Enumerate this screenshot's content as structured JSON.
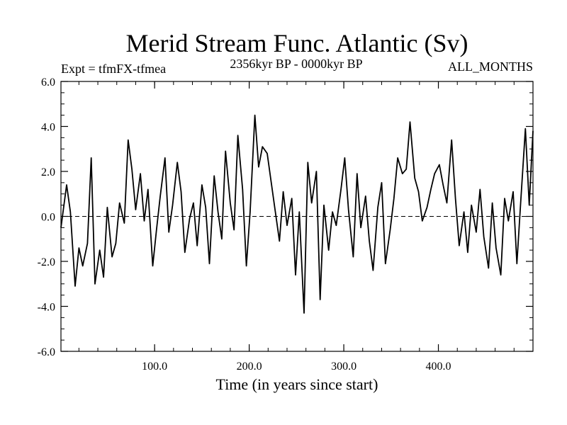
{
  "chart_data": {
    "type": "line",
    "title": "Merid Stream Func. Atlantic (Sv)",
    "subtitle_left": "Expt = tfmFX-tfmea",
    "subtitle_center": "2356kyr BP - 0000kyr BP",
    "subtitle_right": "ALL_MONTHS",
    "xlabel": "Time (in years since start)",
    "ylabel": "",
    "xlim": [
      1,
      500
    ],
    "ylim": [
      -6,
      6
    ],
    "xticks_major": [
      100,
      200,
      300,
      400
    ],
    "xtick_labels": [
      "100.0",
      "200.0",
      "300.0",
      "400.0"
    ],
    "yticks_major": [
      -6,
      -4,
      -2,
      0,
      2,
      4,
      6
    ],
    "ytick_labels": [
      "-6.0",
      "-4.0",
      "-2.0",
      "0.0",
      "2.0",
      "4.0",
      "6.0"
    ],
    "zero_line": "dashed",
    "series": [
      {
        "name": "tfmFX-tfmea",
        "x": [
          1,
          7,
          11,
          16,
          20,
          24,
          29,
          33,
          37,
          42,
          46,
          50,
          55,
          59,
          63,
          68,
          72,
          76,
          80,
          85,
          89,
          93,
          98,
          102,
          106,
          111,
          115,
          119,
          124,
          128,
          132,
          137,
          141,
          145,
          150,
          154,
          158,
          163,
          167,
          171,
          175,
          180,
          184,
          188,
          193,
          197,
          201,
          206,
          210,
          214,
          219,
          223,
          227,
          232,
          236,
          240,
          245,
          249,
          253,
          258,
          262,
          266,
          271,
          275,
          279,
          284,
          288,
          292,
          297,
          301,
          305,
          310,
          314,
          318,
          323,
          327,
          331,
          336,
          340,
          344,
          349,
          353,
          357,
          362,
          366,
          370,
          375,
          379,
          383,
          388,
          392,
          396,
          401,
          405,
          409,
          414,
          418,
          422,
          427,
          431,
          435,
          440,
          444,
          448,
          453,
          457,
          461,
          466,
          470,
          474,
          479,
          483,
          487,
          492,
          496,
          500
        ],
        "y": [
          -0.5,
          1.4,
          0.2,
          -3.1,
          -1.4,
          -2.2,
          -1.2,
          2.6,
          -3.0,
          -1.5,
          -2.7,
          0.4,
          -1.8,
          -1.2,
          0.6,
          -0.3,
          3.4,
          2.1,
          0.3,
          1.9,
          -0.2,
          1.2,
          -2.2,
          -0.6,
          0.9,
          2.6,
          -0.7,
          0.5,
          2.4,
          1.1,
          -1.6,
          -0.1,
          0.6,
          -1.3,
          1.4,
          0.4,
          -2.1,
          1.8,
          0.2,
          -1.0,
          2.9,
          0.6,
          -0.6,
          3.6,
          1.2,
          -2.2,
          0.2,
          4.5,
          2.2,
          3.1,
          2.8,
          1.6,
          0.4,
          -1.1,
          1.1,
          -0.4,
          0.8,
          -2.6,
          0.2,
          -4.3,
          2.4,
          0.6,
          2.0,
          -3.7,
          0.5,
          -1.5,
          0.2,
          -0.4,
          1.2,
          2.6,
          0.3,
          -1.8,
          1.9,
          -0.5,
          0.9,
          -1.1,
          -2.4,
          0.4,
          1.5,
          -2.1,
          -0.6,
          0.8,
          2.6,
          1.9,
          2.1,
          4.2,
          1.7,
          1.1,
          -0.2,
          0.4,
          1.2,
          1.9,
          2.3,
          1.4,
          0.6,
          3.4,
          0.8,
          -1.3,
          0.2,
          -1.6,
          0.5,
          -0.7,
          1.2,
          -0.9,
          -2.3,
          0.6,
          -1.4,
          -2.6,
          0.8,
          -0.2,
          1.1,
          -2.1,
          0.6,
          3.9,
          0.5,
          3.8
        ]
      }
    ]
  }
}
